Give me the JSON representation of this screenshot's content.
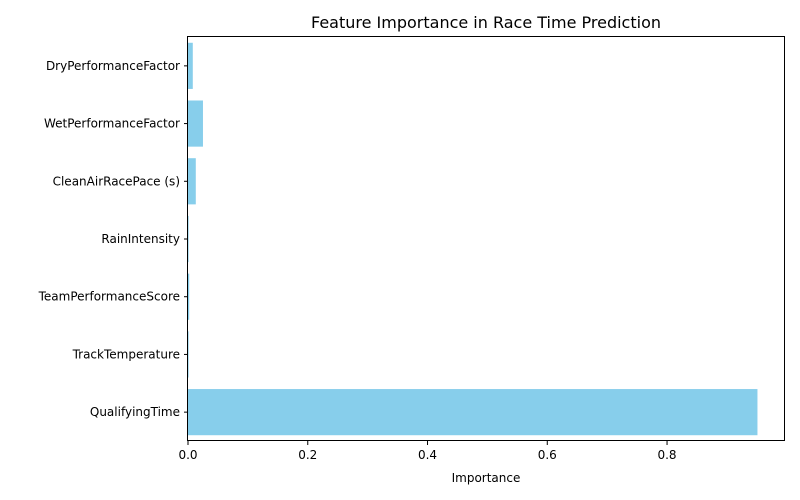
{
  "chart_data": {
    "type": "bar",
    "orientation": "horizontal",
    "title": "Feature Importance in Race Time Prediction",
    "xlabel": "Importance",
    "ylabel": "",
    "categories": [
      "QualifyingTime",
      "TrackTemperature",
      "TeamPerformanceScore",
      "RainIntensity",
      "CleanAirRacePace (s)",
      "WetPerformanceFactor",
      "DryPerformanceFactor"
    ],
    "values": [
      0.951,
      0.0003,
      0.002,
      0.0002,
      0.013,
      0.025,
      0.008
    ],
    "xlim": [
      0,
      0.997
    ],
    "xticks": [
      0.0,
      0.2,
      0.4,
      0.6,
      0.8
    ],
    "xtick_labels": [
      "0.0",
      "0.2",
      "0.4",
      "0.6",
      "0.8"
    ],
    "bar_color": "#87ceeb",
    "grid": false,
    "legend": "none"
  }
}
